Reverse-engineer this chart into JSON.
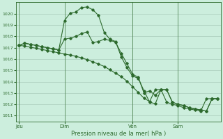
{
  "background_color": "#cceedd",
  "grid_color": "#aaccbb",
  "line_color": "#2d6a2d",
  "marker_color": "#2d6a2d",
  "title": "Pression niveau de la mer( hPa )",
  "ylabel_vals": [
    1011,
    1012,
    1013,
    1014,
    1015,
    1016,
    1017,
    1018,
    1019,
    1020
  ],
  "ylim": [
    1010.5,
    1021.0
  ],
  "xtick_labels": [
    "Jeu",
    "Dim",
    "Ven",
    "Sam"
  ],
  "xtick_positions": [
    0,
    8,
    20,
    28
  ],
  "total_points": 36,
  "series1": [
    1017.2,
    1017.4,
    1017.3,
    1017.2,
    1017.1,
    1017.0,
    1016.9,
    1016.8,
    1019.4,
    1020.05,
    1020.15,
    1020.55,
    1020.6,
    1020.35,
    1019.85,
    1018.35,
    1017.75,
    1017.55,
    1016.2,
    1015.25,
    1014.5,
    1014.3,
    1013.2,
    1012.2,
    1012.05,
    1013.3,
    1013.3,
    1012.2,
    1012.0,
    1011.9,
    1011.7,
    1011.6,
    1011.5,
    1011.4,
    1012.5,
    1012.5
  ],
  "series2": [
    1017.2,
    1017.4,
    1017.3,
    1017.2,
    1017.1,
    1017.0,
    1016.9,
    1016.8,
    1017.75,
    1017.85,
    1018.0,
    1018.25,
    1018.4,
    1017.45,
    1017.55,
    1017.75,
    1017.65,
    1017.5,
    1016.5,
    1015.6,
    1014.65,
    1014.4,
    1013.0,
    1013.2,
    1012.8,
    1013.3,
    1013.3,
    1012.2,
    1012.0,
    1011.9,
    1011.7,
    1011.6,
    1011.5,
    1011.4,
    1012.5,
    1012.5
  ],
  "series3": [
    1017.2,
    1017.15,
    1017.05,
    1016.95,
    1016.85,
    1016.75,
    1016.65,
    1016.55,
    1016.45,
    1016.35,
    1016.25,
    1016.1,
    1015.95,
    1015.75,
    1015.55,
    1015.35,
    1015.05,
    1014.75,
    1014.45,
    1014.05,
    1013.55,
    1013.05,
    1012.55,
    1012.25,
    1013.3,
    1013.3,
    1012.2,
    1012.0,
    1011.9,
    1011.7,
    1011.6,
    1011.5,
    1011.4,
    1012.5,
    1012.5,
    1012.5
  ]
}
